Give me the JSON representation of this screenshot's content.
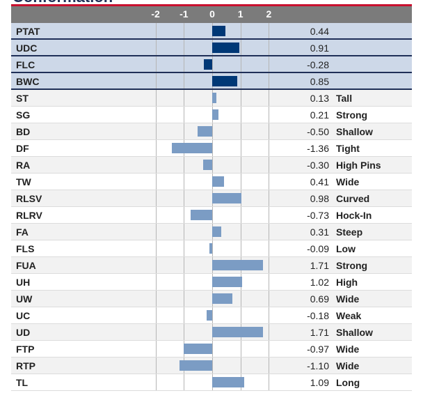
{
  "title": "Conformation",
  "colors": {
    "header_bg": "#7b7b7b",
    "accent_red": "#c8102e",
    "summary_bar": "#003876",
    "trait_bar": "#7b9cc4",
    "summary_row_bg": "#cdd8e8"
  },
  "chart_data": {
    "type": "bar",
    "orientation": "horizontal",
    "xlim": [
      -2,
      2
    ],
    "ticks": [
      "-2",
      "-1",
      "0",
      "1",
      "2"
    ],
    "grid": true,
    "summary": [
      {
        "label": "PTAT",
        "value": 0.44,
        "value_text": "0.44"
      },
      {
        "label": "UDC",
        "value": 0.91,
        "value_text": "0.91"
      },
      {
        "label": "FLC",
        "value": -0.28,
        "value_text": "-0.28"
      },
      {
        "label": "BWC",
        "value": 0.85,
        "value_text": "0.85"
      }
    ],
    "traits": [
      {
        "label": "ST",
        "value": 0.13,
        "value_text": "0.13",
        "desc": "Tall"
      },
      {
        "label": "SG",
        "value": 0.21,
        "value_text": "0.21",
        "desc": "Strong"
      },
      {
        "label": "BD",
        "value": -0.5,
        "value_text": "-0.50",
        "desc": "Shallow"
      },
      {
        "label": "DF",
        "value": -1.36,
        "value_text": "-1.36",
        "desc": "Tight"
      },
      {
        "label": "RA",
        "value": -0.3,
        "value_text": "-0.30",
        "desc": "High Pins"
      },
      {
        "label": "TW",
        "value": 0.41,
        "value_text": "0.41",
        "desc": "Wide"
      },
      {
        "label": "RLSV",
        "value": 0.98,
        "value_text": "0.98",
        "desc": "Curved"
      },
      {
        "label": "RLRV",
        "value": -0.73,
        "value_text": "-0.73",
        "desc": "Hock-In"
      },
      {
        "label": "FA",
        "value": 0.31,
        "value_text": "0.31",
        "desc": "Steep"
      },
      {
        "label": "FLS",
        "value": -0.09,
        "value_text": "-0.09",
        "desc": "Low"
      },
      {
        "label": "FUA",
        "value": 1.71,
        "value_text": "1.71",
        "desc": "Strong"
      },
      {
        "label": "UH",
        "value": 1.02,
        "value_text": "1.02",
        "desc": "High"
      },
      {
        "label": "UW",
        "value": 0.69,
        "value_text": "0.69",
        "desc": "Wide"
      },
      {
        "label": "UC",
        "value": -0.18,
        "value_text": "-0.18",
        "desc": "Weak"
      },
      {
        "label": "UD",
        "value": 1.71,
        "value_text": "1.71",
        "desc": "Shallow"
      },
      {
        "label": "FTP",
        "value": -0.97,
        "value_text": "-0.97",
        "desc": "Wide"
      },
      {
        "label": "RTP",
        "value": -1.1,
        "value_text": "-1.10",
        "desc": "Wide"
      },
      {
        "label": "TL",
        "value": 1.09,
        "value_text": "1.09",
        "desc": "Long"
      }
    ]
  }
}
